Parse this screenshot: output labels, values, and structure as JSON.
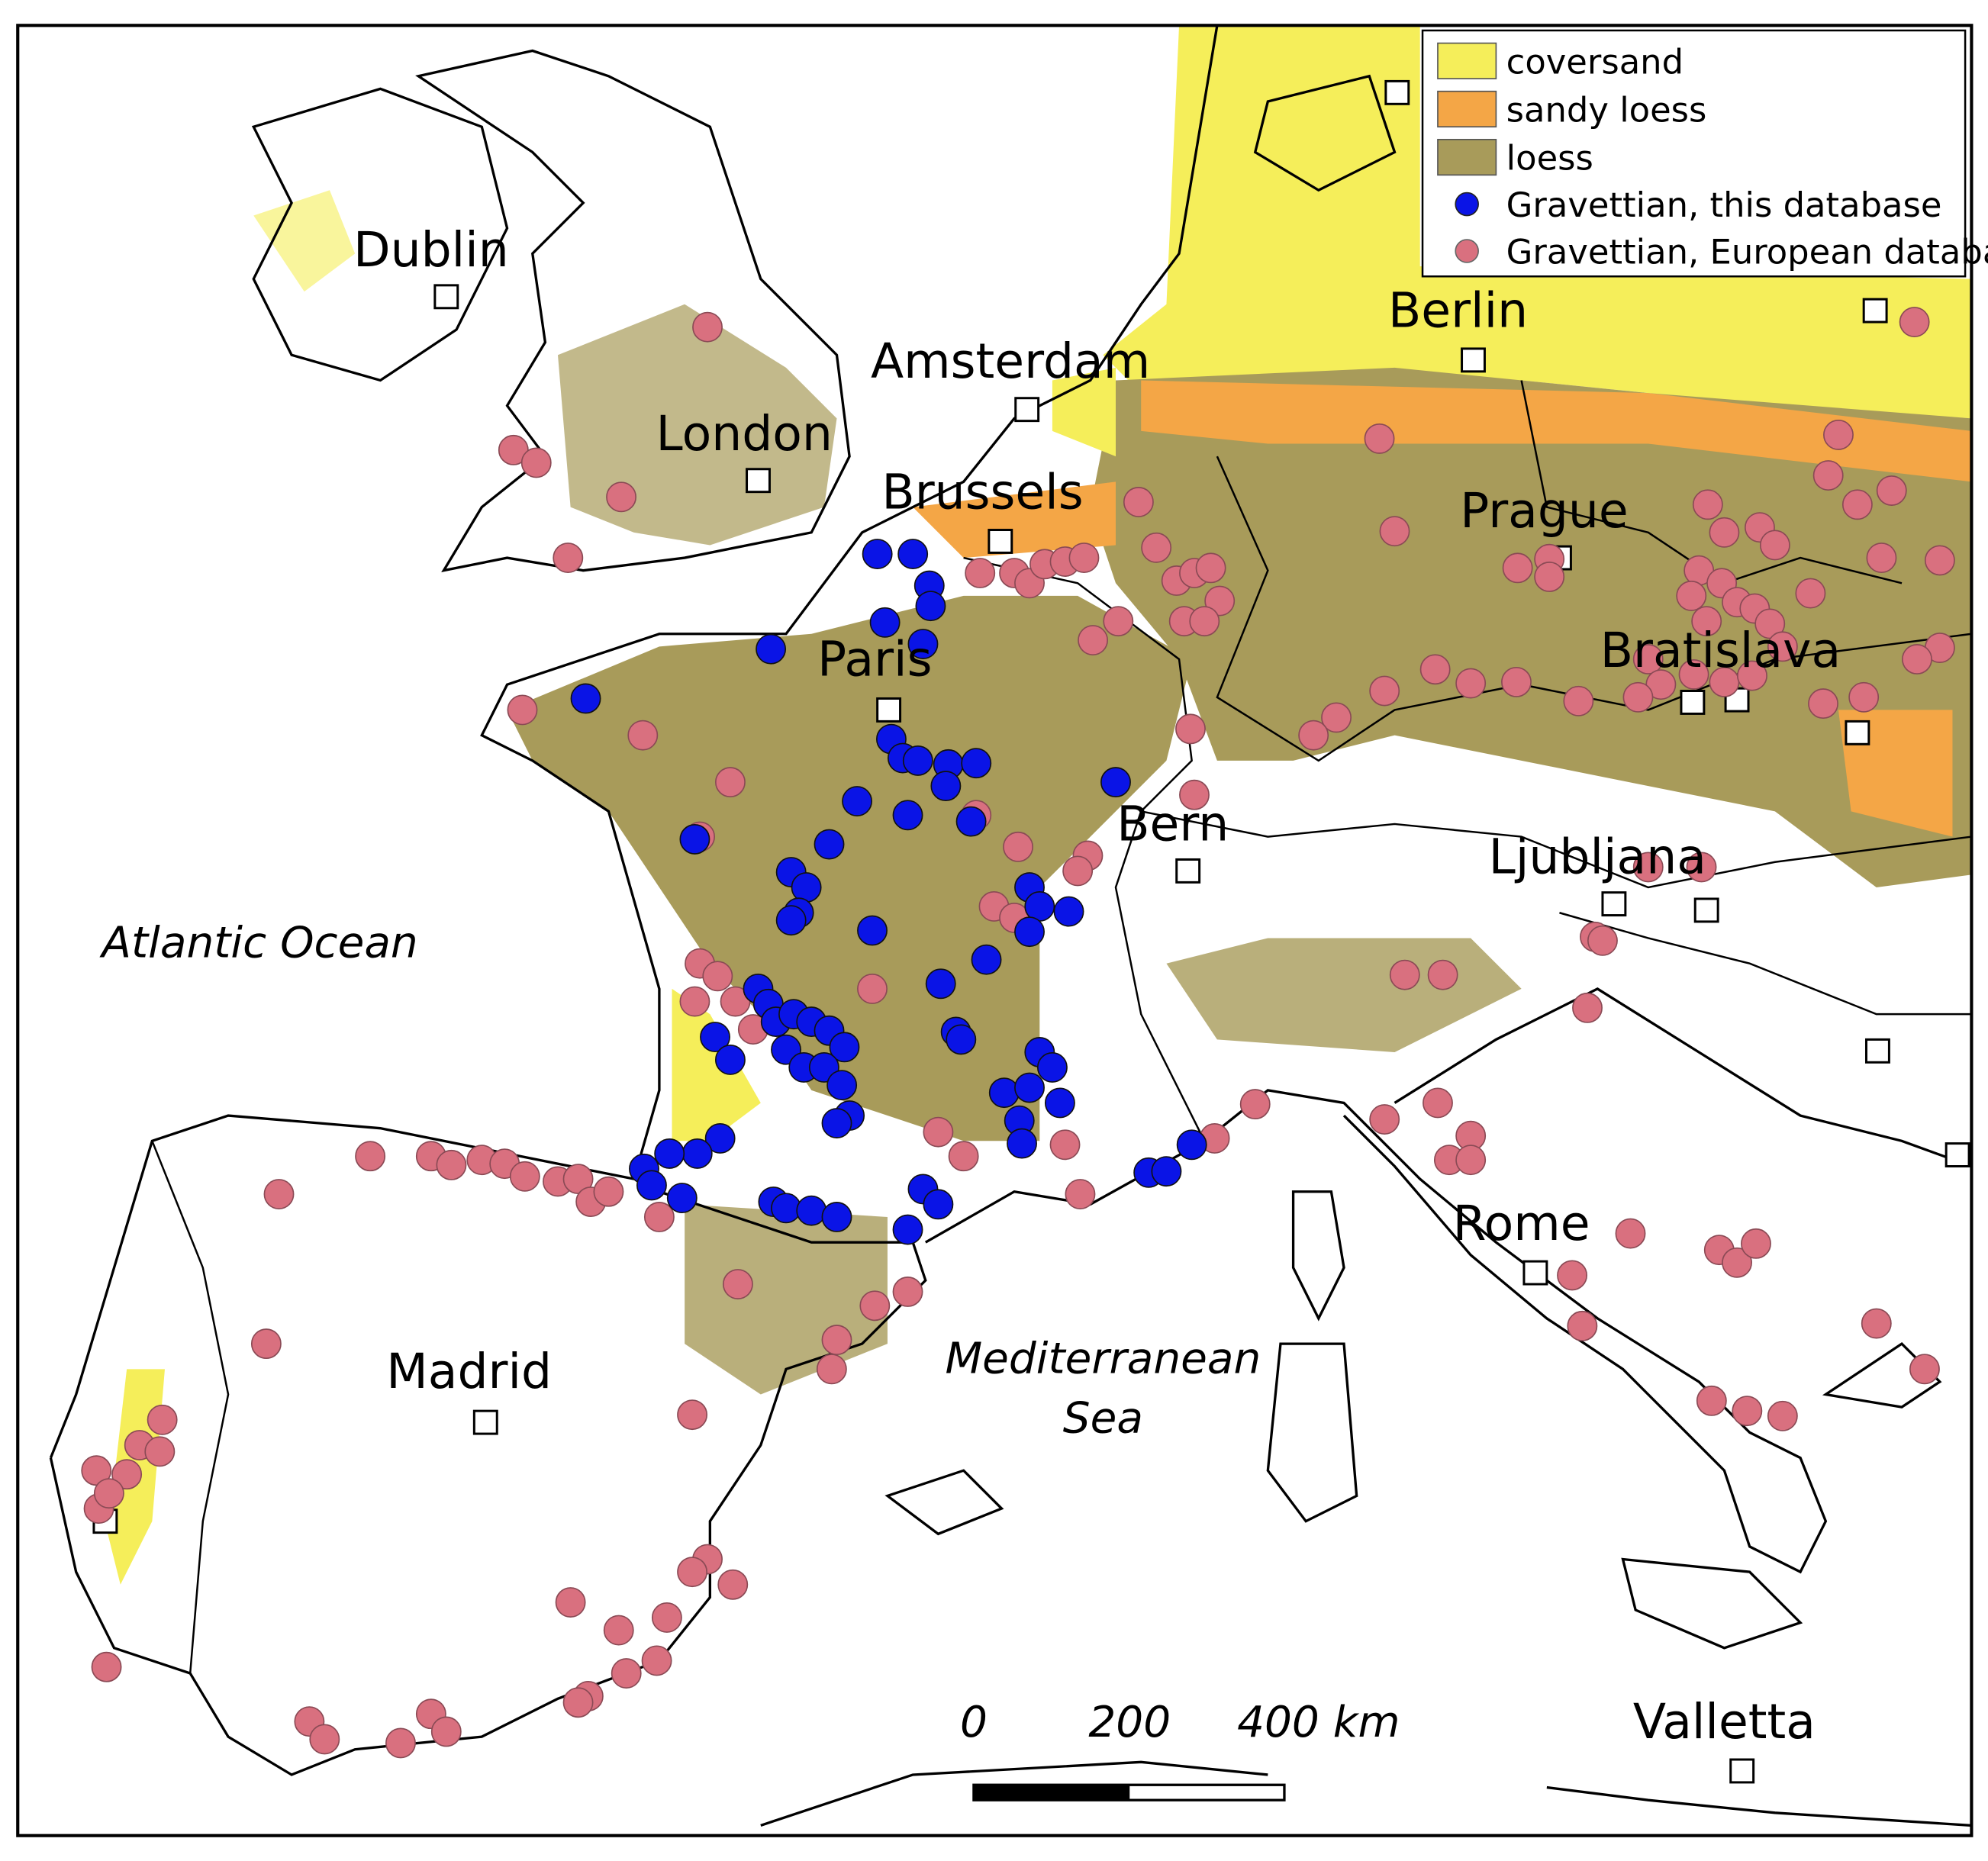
{
  "legend": {
    "items": [
      "coversand",
      "sandy loess",
      "loess",
      "Gravettian, this database",
      "Gravettian, European database"
    ]
  },
  "cities": [
    "Dublin",
    "London",
    "Amsterdam",
    "Brussels",
    "Paris",
    "Berlin",
    "Prague",
    "Bratislava",
    "Bern",
    "Ljubljana",
    "Rome",
    "Madrid",
    "Valletta"
  ],
  "water": {
    "atlantic": "Atlantic Ocean",
    "mediterranean": [
      "Mediterranean",
      "Sea"
    ]
  },
  "scale": [
    "0",
    "200",
    "400 km"
  ]
}
